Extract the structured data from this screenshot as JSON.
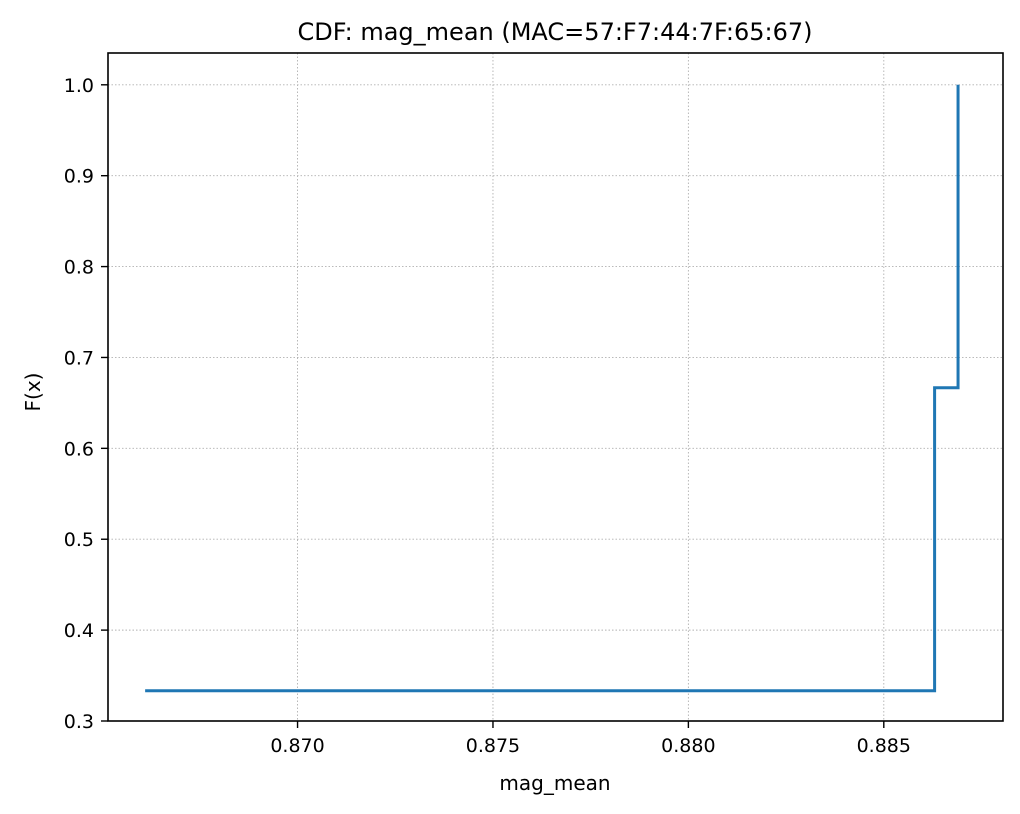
{
  "chart_data": {
    "type": "line",
    "step": true,
    "title": "CDF: mag_mean (MAC=57:F7:44:7F:65:67)",
    "xlabel": "mag_mean",
    "ylabel": "F(x)",
    "xlim": [
      0.86515,
      0.88805
    ],
    "ylim": [
      0.3,
      1.035
    ],
    "xticks": [
      0.87,
      0.875,
      0.88,
      0.885
    ],
    "xtick_labels": [
      "0.870",
      "0.875",
      "0.880",
      "0.885"
    ],
    "yticks": [
      0.3,
      0.4,
      0.5,
      0.6,
      0.7,
      0.8,
      0.9,
      1.0
    ],
    "ytick_labels": [
      "0.3",
      "0.4",
      "0.5",
      "0.6",
      "0.7",
      "0.8",
      "0.9",
      "1.0"
    ],
    "grid": true,
    "grid_style": "dotted",
    "series": [
      {
        "color": "#1f77b4",
        "points": [
          {
            "x": 0.8661,
            "y": 0.3333
          },
          {
            "x": 0.8863,
            "y": 0.3333
          },
          {
            "x": 0.8863,
            "y": 0.6667
          },
          {
            "x": 0.8869,
            "y": 0.6667
          },
          {
            "x": 0.8869,
            "y": 1.0
          }
        ]
      }
    ]
  }
}
